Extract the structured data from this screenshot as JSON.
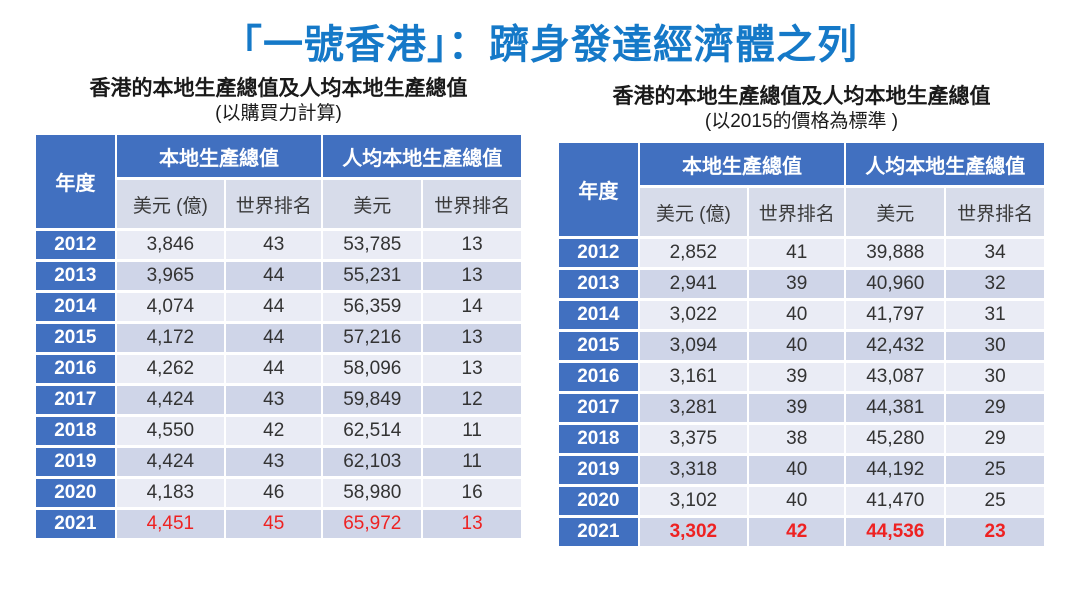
{
  "title": "「一號香港」：躋身發達經濟體之列",
  "colors": {
    "title_blue": "#1579c8",
    "header_blue": "#4170c0",
    "subheader_bg": "#d7dcea",
    "row_light": "#eaecf5",
    "row_dark": "#cfd5e8",
    "highlight_red": "#ee2222"
  },
  "tables": [
    {
      "subtitle_line1": "香港的本地生產總值及人均本地生產總值",
      "subtitle_line2": "(以購買力計算)",
      "headers": {
        "year": "年度",
        "gdp_group": "本地生產總值",
        "per_capita_group": "人均本地生產總值",
        "usd_billion": "美元 (億)",
        "world_rank_gdp": "世界排名",
        "usd": "美元",
        "world_rank_pc": "世界排名"
      },
      "highlight_bold": false,
      "rows": [
        {
          "year": "2012",
          "values": [
            "3,846",
            "43",
            "53,785",
            "13"
          ],
          "highlight": false
        },
        {
          "year": "2013",
          "values": [
            "3,965",
            "44",
            "55,231",
            "13"
          ],
          "highlight": false
        },
        {
          "year": "2014",
          "values": [
            "4,074",
            "44",
            "56,359",
            "14"
          ],
          "highlight": false
        },
        {
          "year": "2015",
          "values": [
            "4,172",
            "44",
            "57,216",
            "13"
          ],
          "highlight": false
        },
        {
          "year": "2016",
          "values": [
            "4,262",
            "44",
            "58,096",
            "13"
          ],
          "highlight": false
        },
        {
          "year": "2017",
          "values": [
            "4,424",
            "43",
            "59,849",
            "12"
          ],
          "highlight": false
        },
        {
          "year": "2018",
          "values": [
            "4,550",
            "42",
            "62,514",
            "11"
          ],
          "highlight": false
        },
        {
          "year": "2019",
          "values": [
            "4,424",
            "43",
            "62,103",
            "11"
          ],
          "highlight": false
        },
        {
          "year": "2020",
          "values": [
            "4,183",
            "46",
            "58,980",
            "16"
          ],
          "highlight": false
        },
        {
          "year": "2021",
          "values": [
            "4,451",
            "45",
            "65,972",
            "13"
          ],
          "highlight": true
        }
      ]
    },
    {
      "subtitle_line1": "香港的本地生產總值及人均本地生產總值",
      "subtitle_line2": "(以2015的價格為標準 )",
      "headers": {
        "year": "年度",
        "gdp_group": "本地生產總值",
        "per_capita_group": "人均本地生產總值",
        "usd_billion": "美元 (億)",
        "world_rank_gdp": "世界排名",
        "usd": "美元",
        "world_rank_pc": "世界排名"
      },
      "highlight_bold": true,
      "rows": [
        {
          "year": "2012",
          "values": [
            "2,852",
            "41",
            "39,888",
            "34"
          ],
          "highlight": false
        },
        {
          "year": "2013",
          "values": [
            "2,941",
            "39",
            "40,960",
            "32"
          ],
          "highlight": false
        },
        {
          "year": "2014",
          "values": [
            "3,022",
            "40",
            "41,797",
            "31"
          ],
          "highlight": false
        },
        {
          "year": "2015",
          "values": [
            "3,094",
            "40",
            "42,432",
            "30"
          ],
          "highlight": false
        },
        {
          "year": "2016",
          "values": [
            "3,161",
            "39",
            "43,087",
            "30"
          ],
          "highlight": false
        },
        {
          "year": "2017",
          "values": [
            "3,281",
            "39",
            "44,381",
            "29"
          ],
          "highlight": false
        },
        {
          "year": "2018",
          "values": [
            "3,375",
            "38",
            "45,280",
            "29"
          ],
          "highlight": false
        },
        {
          "year": "2019",
          "values": [
            "3,318",
            "40",
            "44,192",
            "25"
          ],
          "highlight": false
        },
        {
          "year": "2020",
          "values": [
            "3,102",
            "40",
            "41,470",
            "25"
          ],
          "highlight": false
        },
        {
          "year": "2021",
          "values": [
            "3,302",
            "42",
            "44,536",
            "23"
          ],
          "highlight": true
        }
      ]
    }
  ]
}
